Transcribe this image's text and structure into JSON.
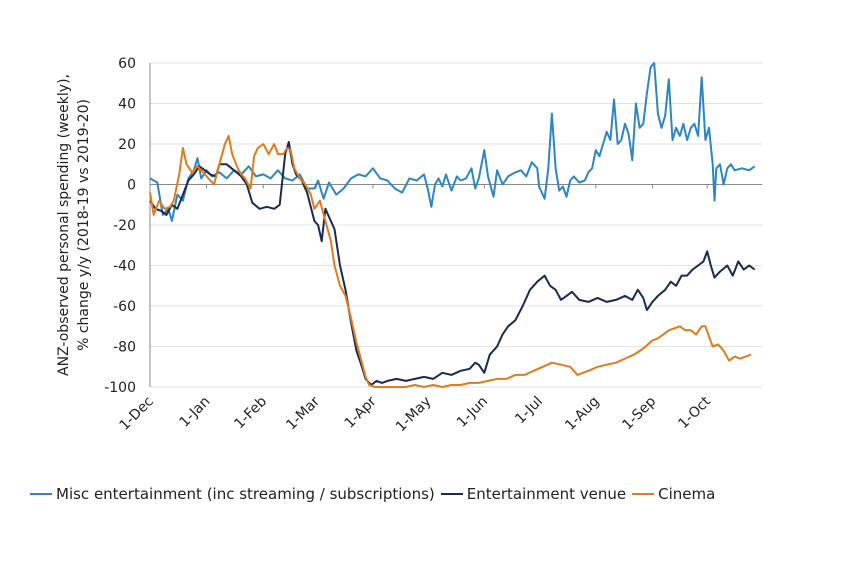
{
  "chart_data": {
    "type": "line",
    "title": "",
    "ylabel_line1": "ANZ-observed personal spending (weekly),",
    "ylabel_line2": "% change y/y (2018-19 vs 2019-20)",
    "xlabel": "",
    "ylim": [
      -100,
      60
    ],
    "yticks": [
      60,
      40,
      20,
      0,
      -20,
      -40,
      -60,
      -80,
      -100
    ],
    "xticks": [
      {
        "label": "1-Dec",
        "day": 0
      },
      {
        "label": "1-Jan",
        "day": 31
      },
      {
        "label": "1-Feb",
        "day": 62
      },
      {
        "label": "1-Mar",
        "day": 91
      },
      {
        "label": "1-Apr",
        "day": 122
      },
      {
        "label": "1-May",
        "day": 152
      },
      {
        "label": "1-Jun",
        "day": 183
      },
      {
        "label": "1-Jul",
        "day": 213
      },
      {
        "label": "1-Aug",
        "day": 244
      },
      {
        "label": "1-Sep",
        "day": 275
      },
      {
        "label": "1-Oct",
        "day": 305
      }
    ],
    "x_domain": [
      0,
      335
    ],
    "grid": "horizontal",
    "legend_position": "bottom",
    "series": [
      {
        "name": "Misc entertainment (inc streaming / subscriptions)",
        "color": "#2E86C1",
        "points": [
          [
            0,
            3
          ],
          [
            4,
            1
          ],
          [
            7,
            -15
          ],
          [
            10,
            -12
          ],
          [
            12,
            -18
          ],
          [
            15,
            -5
          ],
          [
            18,
            -8
          ],
          [
            21,
            3
          ],
          [
            24,
            7
          ],
          [
            26,
            13
          ],
          [
            28,
            3
          ],
          [
            31,
            7
          ],
          [
            34,
            4
          ],
          [
            38,
            6
          ],
          [
            42,
            3
          ],
          [
            46,
            7
          ],
          [
            50,
            5
          ],
          [
            54,
            9
          ],
          [
            58,
            4
          ],
          [
            62,
            5
          ],
          [
            66,
            3
          ],
          [
            70,
            7
          ],
          [
            74,
            3
          ],
          [
            78,
            2
          ],
          [
            82,
            5
          ],
          [
            86,
            -2
          ],
          [
            90,
            -2
          ],
          [
            92,
            2
          ],
          [
            95,
            -7
          ],
          [
            98,
            1
          ],
          [
            102,
            -5
          ],
          [
            106,
            -2
          ],
          [
            110,
            3
          ],
          [
            114,
            5
          ],
          [
            118,
            4
          ],
          [
            122,
            8
          ],
          [
            126,
            3
          ],
          [
            130,
            2
          ],
          [
            134,
            -2
          ],
          [
            138,
            -4
          ],
          [
            142,
            3
          ],
          [
            146,
            2
          ],
          [
            150,
            5
          ],
          [
            152,
            -2
          ],
          [
            154,
            -11
          ],
          [
            156,
            0
          ],
          [
            158,
            3
          ],
          [
            160,
            -1
          ],
          [
            162,
            5
          ],
          [
            165,
            -3
          ],
          [
            168,
            4
          ],
          [
            170,
            2
          ],
          [
            173,
            3
          ],
          [
            176,
            8
          ],
          [
            178,
            -2
          ],
          [
            180,
            3
          ],
          [
            183,
            17
          ],
          [
            185,
            4
          ],
          [
            188,
            -6
          ],
          [
            190,
            7
          ],
          [
            193,
            0
          ],
          [
            196,
            4
          ],
          [
            200,
            6
          ],
          [
            203,
            7
          ],
          [
            206,
            4
          ],
          [
            209,
            11
          ],
          [
            212,
            8
          ],
          [
            213,
            -1
          ],
          [
            216,
            -7
          ],
          [
            218,
            8
          ],
          [
            220,
            35
          ],
          [
            222,
            8
          ],
          [
            224,
            -3
          ],
          [
            226,
            -1
          ],
          [
            228,
            -6
          ],
          [
            230,
            2
          ],
          [
            232,
            4
          ],
          [
            235,
            1
          ],
          [
            238,
            2
          ],
          [
            240,
            6
          ],
          [
            242,
            8
          ],
          [
            244,
            17
          ],
          [
            246,
            14
          ],
          [
            248,
            20
          ],
          [
            250,
            26
          ],
          [
            252,
            22
          ],
          [
            254,
            42
          ],
          [
            256,
            20
          ],
          [
            258,
            22
          ],
          [
            260,
            30
          ],
          [
            262,
            25
          ],
          [
            264,
            12
          ],
          [
            266,
            40
          ],
          [
            268,
            28
          ],
          [
            270,
            30
          ],
          [
            272,
            45
          ],
          [
            274,
            58
          ],
          [
            276,
            60
          ],
          [
            278,
            35
          ],
          [
            280,
            28
          ],
          [
            282,
            34
          ],
          [
            284,
            52
          ],
          [
            286,
            22
          ],
          [
            288,
            28
          ],
          [
            290,
            24
          ],
          [
            292,
            30
          ],
          [
            294,
            22
          ],
          [
            296,
            28
          ],
          [
            298,
            30
          ],
          [
            300,
            24
          ],
          [
            302,
            53
          ],
          [
            304,
            22
          ],
          [
            306,
            28
          ],
          [
            308,
            10
          ],
          [
            309,
            -8
          ],
          [
            310,
            8
          ],
          [
            312,
            10
          ],
          [
            314,
            0
          ],
          [
            316,
            8
          ],
          [
            318,
            10
          ],
          [
            320,
            7
          ],
          [
            324,
            8
          ],
          [
            328,
            7
          ],
          [
            331,
            9
          ]
        ]
      },
      {
        "name": "Entertainment venue",
        "color": "#1B2A52",
        "points": [
          [
            0,
            -8
          ],
          [
            3,
            -12
          ],
          [
            6,
            -13
          ],
          [
            9,
            -15
          ],
          [
            12,
            -10
          ],
          [
            15,
            -12
          ],
          [
            18,
            -5
          ],
          [
            21,
            2
          ],
          [
            24,
            5
          ],
          [
            27,
            9
          ],
          [
            30,
            7
          ],
          [
            33,
            5
          ],
          [
            36,
            4
          ],
          [
            38,
            10
          ],
          [
            42,
            10
          ],
          [
            46,
            7
          ],
          [
            50,
            4
          ],
          [
            53,
            0
          ],
          [
            56,
            -9
          ],
          [
            60,
            -12
          ],
          [
            64,
            -11
          ],
          [
            68,
            -12
          ],
          [
            71,
            -10
          ],
          [
            74,
            15
          ],
          [
            76,
            21
          ],
          [
            78,
            10
          ],
          [
            80,
            5
          ],
          [
            83,
            2
          ],
          [
            86,
            -4
          ],
          [
            90,
            -18
          ],
          [
            92,
            -20
          ],
          [
            94,
            -28
          ],
          [
            96,
            -12
          ],
          [
            98,
            -16
          ],
          [
            101,
            -22
          ],
          [
            104,
            -40
          ],
          [
            107,
            -52
          ],
          [
            110,
            -68
          ],
          [
            113,
            -82
          ],
          [
            116,
            -90
          ],
          [
            118,
            -96
          ],
          [
            121,
            -99
          ],
          [
            124,
            -97
          ],
          [
            127,
            -98
          ],
          [
            130,
            -97
          ],
          [
            135,
            -96
          ],
          [
            140,
            -97
          ],
          [
            145,
            -96
          ],
          [
            150,
            -95
          ],
          [
            155,
            -96
          ],
          [
            160,
            -93
          ],
          [
            165,
            -94
          ],
          [
            170,
            -92
          ],
          [
            175,
            -91
          ],
          [
            178,
            -88
          ],
          [
            180,
            -89
          ],
          [
            183,
            -93
          ],
          [
            186,
            -84
          ],
          [
            190,
            -80
          ],
          [
            193,
            -74
          ],
          [
            196,
            -70
          ],
          [
            200,
            -67
          ],
          [
            204,
            -60
          ],
          [
            208,
            -52
          ],
          [
            212,
            -48
          ],
          [
            216,
            -45
          ],
          [
            219,
            -50
          ],
          [
            222,
            -52
          ],
          [
            225,
            -57
          ],
          [
            228,
            -55
          ],
          [
            231,
            -53
          ],
          [
            235,
            -57
          ],
          [
            240,
            -58
          ],
          [
            245,
            -56
          ],
          [
            250,
            -58
          ],
          [
            255,
            -57
          ],
          [
            260,
            -55
          ],
          [
            264,
            -57
          ],
          [
            267,
            -52
          ],
          [
            270,
            -56
          ],
          [
            272,
            -62
          ],
          [
            275,
            -58
          ],
          [
            278,
            -55
          ],
          [
            282,
            -52
          ],
          [
            285,
            -48
          ],
          [
            288,
            -50
          ],
          [
            291,
            -45
          ],
          [
            294,
            -45
          ],
          [
            297,
            -42
          ],
          [
            300,
            -40
          ],
          [
            303,
            -38
          ],
          [
            305,
            -33
          ],
          [
            307,
            -40
          ],
          [
            309,
            -46
          ],
          [
            312,
            -43
          ],
          [
            316,
            -40
          ],
          [
            319,
            -45
          ],
          [
            322,
            -38
          ],
          [
            325,
            -42
          ],
          [
            328,
            -40
          ],
          [
            331,
            -42
          ]
        ]
      },
      {
        "name": "Cinema",
        "color": "#E07B1F",
        "points": [
          [
            0,
            -4
          ],
          [
            2,
            -15
          ],
          [
            5,
            -8
          ],
          [
            8,
            -12
          ],
          [
            11,
            -11
          ],
          [
            13,
            -8
          ],
          [
            16,
            5
          ],
          [
            18,
            18
          ],
          [
            20,
            10
          ],
          [
            23,
            6
          ],
          [
            26,
            9
          ],
          [
            29,
            6
          ],
          [
            32,
            3
          ],
          [
            35,
            0
          ],
          [
            38,
            10
          ],
          [
            41,
            20
          ],
          [
            43,
            24
          ],
          [
            45,
            15
          ],
          [
            48,
            8
          ],
          [
            50,
            5
          ],
          [
            52,
            3
          ],
          [
            55,
            -2
          ],
          [
            57,
            14
          ],
          [
            59,
            18
          ],
          [
            62,
            20
          ],
          [
            65,
            15
          ],
          [
            68,
            20
          ],
          [
            70,
            15
          ],
          [
            73,
            15
          ],
          [
            75,
            18
          ],
          [
            77,
            17
          ],
          [
            79,
            8
          ],
          [
            82,
            3
          ],
          [
            85,
            0
          ],
          [
            88,
            -5
          ],
          [
            90,
            -12
          ],
          [
            93,
            -8
          ],
          [
            96,
            -18
          ],
          [
            99,
            -28
          ],
          [
            101,
            -40
          ],
          [
            104,
            -50
          ],
          [
            107,
            -55
          ],
          [
            110,
            -66
          ],
          [
            113,
            -78
          ],
          [
            116,
            -88
          ],
          [
            118,
            -95
          ],
          [
            120,
            -99
          ],
          [
            123,
            -100
          ],
          [
            128,
            -100
          ],
          [
            135,
            -100
          ],
          [
            140,
            -100
          ],
          [
            145,
            -99
          ],
          [
            150,
            -100
          ],
          [
            155,
            -99
          ],
          [
            160,
            -100
          ],
          [
            165,
            -99
          ],
          [
            170,
            -99
          ],
          [
            175,
            -98
          ],
          [
            180,
            -98
          ],
          [
            185,
            -97
          ],
          [
            190,
            -96
          ],
          [
            195,
            -96
          ],
          [
            200,
            -94
          ],
          [
            205,
            -94
          ],
          [
            210,
            -92
          ],
          [
            215,
            -90
          ],
          [
            220,
            -88
          ],
          [
            225,
            -89
          ],
          [
            230,
            -90
          ],
          [
            234,
            -94
          ],
          [
            237,
            -93
          ],
          [
            240,
            -92
          ],
          [
            245,
            -90
          ],
          [
            250,
            -89
          ],
          [
            255,
            -88
          ],
          [
            260,
            -86
          ],
          [
            265,
            -84
          ],
          [
            270,
            -81
          ],
          [
            275,
            -77
          ],
          [
            278,
            -76
          ],
          [
            281,
            -74
          ],
          [
            284,
            -72
          ],
          [
            287,
            -71
          ],
          [
            290,
            -70
          ],
          [
            293,
            -72
          ],
          [
            296,
            -72
          ],
          [
            299,
            -74
          ],
          [
            302,
            -70
          ],
          [
            304,
            -70
          ],
          [
            306,
            -75
          ],
          [
            308,
            -80
          ],
          [
            311,
            -79
          ],
          [
            314,
            -82
          ],
          [
            317,
            -87
          ],
          [
            320,
            -85
          ],
          [
            323,
            -86
          ],
          [
            326,
            -85
          ],
          [
            329,
            -84
          ]
        ]
      }
    ]
  }
}
